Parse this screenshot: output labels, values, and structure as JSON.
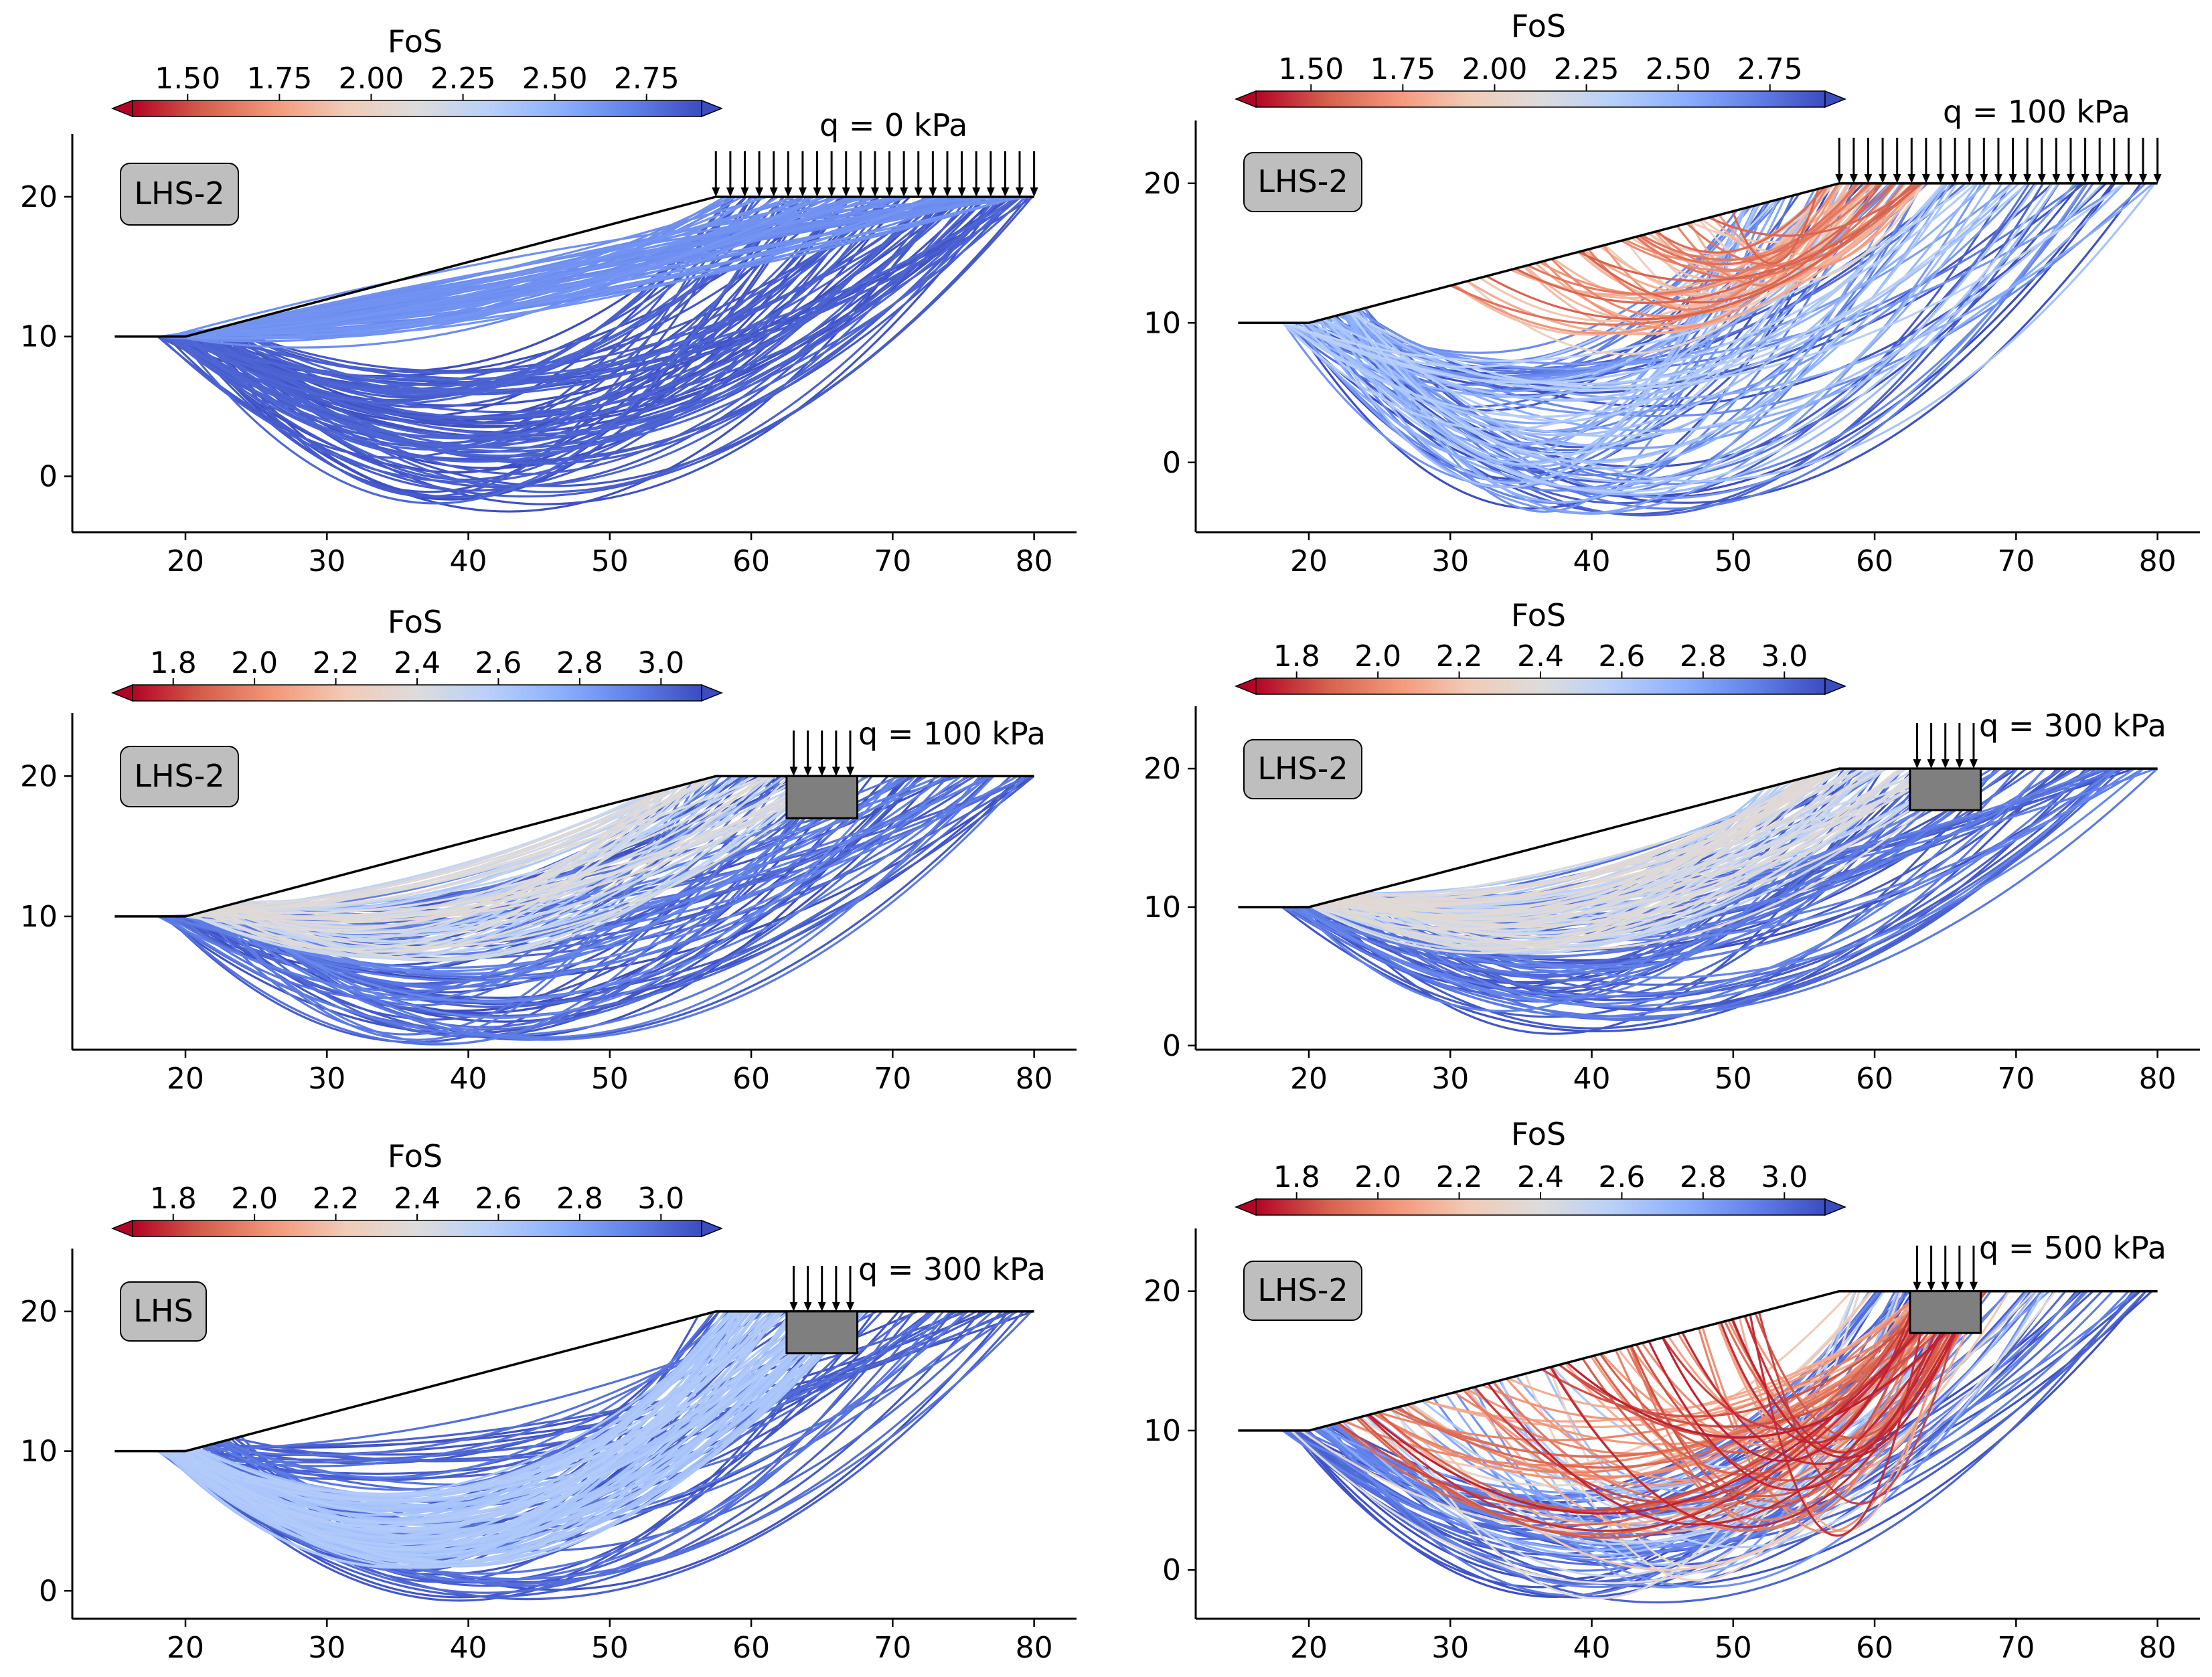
{
  "chart_data": [
    {
      "type": "line",
      "panel": "top-left",
      "badge": "LHS-2",
      "load_label": "q = 0 kPa",
      "load_type": "uniform",
      "load_start_x": 57.5,
      "footing": null,
      "colorbar": {
        "title": "FoS",
        "range": [
          1.35,
          2.9
        ],
        "ticks": [
          "1.50",
          "1.75",
          "2.00",
          "2.25",
          "2.50",
          "2.75"
        ],
        "tick_values": [
          1.5,
          1.75,
          2.0,
          2.25,
          2.5,
          2.75
        ]
      },
      "xlim": [
        12,
        83
      ],
      "ylim": [
        -4,
        24.5
      ],
      "xticks": [
        "20",
        "30",
        "40",
        "50",
        "60",
        "70",
        "80"
      ],
      "xtick_values": [
        20,
        30,
        40,
        50,
        60,
        70,
        80
      ],
      "yticks": [
        "0",
        "10",
        "20"
      ],
      "ytick_values": [
        0,
        10,
        20
      ],
      "slope": {
        "toe_x": 20,
        "crest_x": 57.5,
        "toe_y": 10,
        "crest_y": 20,
        "left_x": 15,
        "right_x": 80
      },
      "fos_description": "mostly 2.6-2.9 (light blue to dark blue)",
      "seed": 11,
      "min_depth": -2.6
    },
    {
      "type": "line",
      "panel": "top-right",
      "badge": "LHS-2",
      "load_label": "q = 100 kPa",
      "load_type": "uniform",
      "load_start_x": 57.5,
      "footing": null,
      "colorbar": {
        "title": "FoS",
        "range": [
          1.35,
          2.9
        ],
        "ticks": [
          "1.50",
          "1.75",
          "2.00",
          "2.25",
          "2.50",
          "2.75"
        ],
        "tick_values": [
          1.5,
          1.75,
          2.0,
          2.25,
          2.5,
          2.75
        ]
      },
      "xlim": [
        12,
        83
      ],
      "ylim": [
        -5,
        24.5
      ],
      "xticks": [
        "20",
        "30",
        "40",
        "50",
        "60",
        "70",
        "80"
      ],
      "xtick_values": [
        20,
        30,
        40,
        50,
        60,
        70,
        80
      ],
      "yticks": [
        "0",
        "10",
        "20"
      ],
      "ytick_values": [
        0,
        10,
        20
      ],
      "slope": {
        "toe_x": 20,
        "crest_x": 57.5,
        "toe_y": 10,
        "crest_y": 20,
        "left_x": 15,
        "right_x": 80
      },
      "fos_description": "critical red near crest (about 1.6), blue elsewhere",
      "seed": 23,
      "min_depth": -3.5
    },
    {
      "type": "line",
      "panel": "middle-left",
      "badge": "LHS-2",
      "load_label": "q = 100 kPa",
      "load_type": "footing",
      "footing": {
        "x0": 62.5,
        "x1": 67.5,
        "depth": 3
      },
      "colorbar": {
        "title": "FoS",
        "range": [
          1.7,
          3.1
        ],
        "ticks": [
          "1.8",
          "2.0",
          "2.2",
          "2.4",
          "2.6",
          "2.8",
          "3.0"
        ],
        "tick_values": [
          1.8,
          2.0,
          2.2,
          2.4,
          2.6,
          2.8,
          3.0
        ]
      },
      "xlim": [
        12,
        83
      ],
      "ylim": [
        0.5,
        24.5
      ],
      "xticks": [
        "20",
        "30",
        "40",
        "50",
        "60",
        "70",
        "80"
      ],
      "xtick_values": [
        20,
        30,
        40,
        50,
        60,
        70,
        80
      ],
      "yticks": [
        "10",
        "20"
      ],
      "ytick_values": [
        10,
        20
      ],
      "slope": {
        "toe_x": 20,
        "crest_x": 57.5,
        "toe_y": 10,
        "crest_y": 20,
        "left_x": 15,
        "right_x": 80
      },
      "fos_description": "shallow surfaces light grey (about 2.4), deep surfaces dark blue",
      "seed": 37,
      "min_depth": 1.2
    },
    {
      "type": "line",
      "panel": "middle-right",
      "badge": "LHS-2",
      "load_label": "q = 300 kPa",
      "load_type": "footing",
      "footing": {
        "x0": 62.5,
        "x1": 67.5,
        "depth": 3
      },
      "colorbar": {
        "title": "FoS",
        "range": [
          1.7,
          3.1
        ],
        "ticks": [
          "1.8",
          "2.0",
          "2.2",
          "2.4",
          "2.6",
          "2.8",
          "3.0"
        ],
        "tick_values": [
          1.8,
          2.0,
          2.2,
          2.4,
          2.6,
          2.8,
          3.0
        ]
      },
      "xlim": [
        12,
        83
      ],
      "ylim": [
        -0.3,
        24.5
      ],
      "xticks": [
        "20",
        "30",
        "40",
        "50",
        "60",
        "70",
        "80"
      ],
      "xtick_values": [
        20,
        30,
        40,
        50,
        60,
        70,
        80
      ],
      "yticks": [
        "0",
        "10",
        "20"
      ],
      "ytick_values": [
        0,
        10,
        20
      ],
      "slope": {
        "toe_x": 20,
        "crest_x": 57.5,
        "toe_y": 10,
        "crest_y": 20,
        "left_x": 15,
        "right_x": 80
      },
      "fos_description": "shallow surfaces light blue/grey, deep surfaces dark blue",
      "seed": 41,
      "min_depth": 0.8
    },
    {
      "type": "line",
      "panel": "bottom-left",
      "badge": "LHS",
      "load_label": "q = 300 kPa",
      "load_type": "footing",
      "footing": {
        "x0": 62.5,
        "x1": 67.5,
        "depth": 3
      },
      "colorbar": {
        "title": "FoS",
        "range": [
          1.7,
          3.1
        ],
        "ticks": [
          "1.8",
          "2.0",
          "2.2",
          "2.4",
          "2.6",
          "2.8",
          "3.0"
        ],
        "tick_values": [
          1.8,
          2.0,
          2.2,
          2.4,
          2.6,
          2.8,
          3.0
        ]
      },
      "xlim": [
        12,
        83
      ],
      "ylim": [
        -2,
        24.5
      ],
      "xticks": [
        "20",
        "30",
        "40",
        "50",
        "60",
        "70",
        "80"
      ],
      "xtick_values": [
        20,
        30,
        40,
        50,
        60,
        70,
        80
      ],
      "yticks": [
        "0",
        "10",
        "20"
      ],
      "ytick_values": [
        0,
        10,
        20
      ],
      "slope": {
        "toe_x": 20,
        "crest_x": 57.5,
        "toe_y": 10,
        "crest_y": 20,
        "left_x": 15,
        "right_x": 80
      },
      "fos_description": "dense band of light blue (about 2.6) surfaces, dark blue outliers",
      "seed": 53,
      "min_depth": -0.9
    },
    {
      "type": "line",
      "panel": "bottom-right",
      "badge": "LHS-2",
      "load_label": "q = 500 kPa",
      "load_type": "footing",
      "footing": {
        "x0": 62.5,
        "x1": 67.5,
        "depth": 3
      },
      "colorbar": {
        "title": "FoS",
        "range": [
          1.7,
          3.1
        ],
        "ticks": [
          "1.8",
          "2.0",
          "2.2",
          "2.4",
          "2.6",
          "2.8",
          "3.0"
        ],
        "tick_values": [
          1.8,
          2.0,
          2.2,
          2.4,
          2.6,
          2.8,
          3.0
        ]
      },
      "xlim": [
        12,
        83
      ],
      "ylim": [
        -3.5,
        24.5
      ],
      "xticks": [
        "20",
        "30",
        "40",
        "50",
        "60",
        "70",
        "80"
      ],
      "xtick_values": [
        20,
        30,
        40,
        50,
        60,
        70,
        80
      ],
      "yticks": [
        "0",
        "10",
        "20"
      ],
      "ytick_values": [
        0,
        10,
        20
      ],
      "slope": {
        "toe_x": 20,
        "crest_x": 57.5,
        "toe_y": 10,
        "crest_y": 20,
        "left_x": 15,
        "right_x": 80
      },
      "fos_description": "critical dark red (about 1.8) beneath footing, mixed red/blue elsewhere",
      "seed": 67,
      "min_depth": -2.0
    }
  ]
}
